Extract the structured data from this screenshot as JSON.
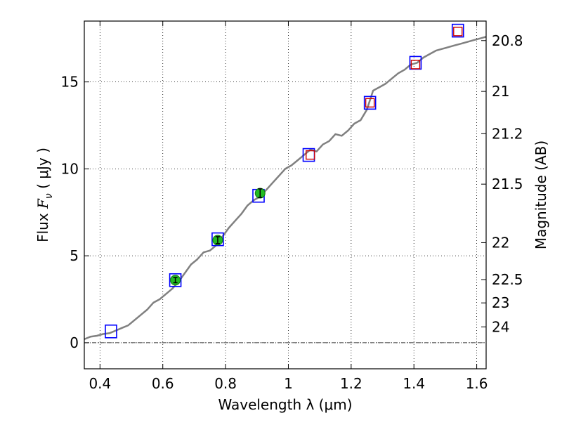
{
  "chart_data": {
    "type": "line",
    "xlabel": "Wavelength  λ (μm)",
    "ylabel": "Flux  F_ν  ( μJy )",
    "ylabel_parts": {
      "pre": "Flux  ",
      "symbol": "F",
      "sub": "ν",
      "post": "  (  μJy )"
    },
    "y2label": "Magnitude (AB)",
    "xlim": [
      0.35,
      1.63
    ],
    "ylim": [
      -1.5,
      18.5
    ],
    "grid": true,
    "x_ticks": [
      0.4,
      0.6,
      0.8,
      1.0,
      1.2,
      1.4,
      1.6
    ],
    "x_tick_labels": [
      "0.4",
      "0.6",
      "0.8",
      "1",
      "1.2",
      "1.4",
      "1.6"
    ],
    "y_ticks": [
      0,
      5,
      10,
      15
    ],
    "y_tick_labels": [
      "0",
      "5",
      "10",
      "15"
    ],
    "magnitude_ticks": [
      20.8,
      21,
      21.2,
      21.5,
      22,
      22.5,
      23,
      24
    ],
    "magnitude_tick_labels": [
      "20.8",
      "21",
      "21.2",
      "21.5",
      "22",
      "22.5",
      "23",
      "24"
    ],
    "magnitude_zero_point": 23.9,
    "zero_line": 0,
    "series": [
      {
        "kind": "spectrum",
        "color": "#808080",
        "x": [
          0.35,
          0.37,
          0.39,
          0.41,
          0.43,
          0.45,
          0.47,
          0.49,
          0.51,
          0.53,
          0.55,
          0.57,
          0.59,
          0.61,
          0.63,
          0.65,
          0.67,
          0.69,
          0.71,
          0.73,
          0.75,
          0.77,
          0.79,
          0.81,
          0.83,
          0.85,
          0.87,
          0.89,
          0.91,
          0.93,
          0.95,
          0.97,
          0.99,
          1.01,
          1.03,
          1.05,
          1.07,
          1.09,
          1.11,
          1.13,
          1.15,
          1.17,
          1.19,
          1.21,
          1.23,
          1.25,
          1.27,
          1.29,
          1.31,
          1.33,
          1.35,
          1.37,
          1.39,
          1.41,
          1.43,
          1.45,
          1.47,
          1.49,
          1.51,
          1.53,
          1.55,
          1.57,
          1.59,
          1.61,
          1.63
        ],
        "y": [
          0.2,
          0.35,
          0.4,
          0.5,
          0.55,
          0.7,
          0.85,
          1.0,
          1.3,
          1.6,
          1.9,
          2.3,
          2.5,
          2.8,
          3.1,
          3.5,
          4.0,
          4.5,
          4.8,
          5.2,
          5.3,
          5.6,
          6.1,
          6.6,
          7.0,
          7.4,
          7.9,
          8.2,
          8.4,
          8.8,
          9.2,
          9.6,
          10.0,
          10.2,
          10.5,
          10.8,
          11.1,
          11.0,
          11.4,
          11.6,
          12.0,
          11.9,
          12.2,
          12.6,
          12.8,
          13.4,
          14.5,
          14.7,
          14.9,
          15.2,
          15.5,
          15.7,
          16.0,
          16.1,
          16.4,
          16.6,
          16.8,
          16.9,
          17.0,
          17.1,
          17.2,
          17.3,
          17.4,
          17.5,
          17.6
        ]
      },
      {
        "kind": "model_photometry",
        "marker": "open square",
        "color": "#0000ff",
        "x": [
          0.435,
          0.64,
          0.775,
          0.905,
          1.065,
          1.26,
          1.405,
          1.54
        ],
        "y": [
          0.65,
          3.6,
          5.95,
          8.45,
          10.8,
          13.8,
          16.1,
          17.95
        ]
      },
      {
        "kind": "observed_photometry",
        "marker": "filled circle",
        "color": "#22bb22",
        "x": [
          0.64,
          0.775,
          0.91
        ],
        "y": [
          3.6,
          5.9,
          8.6
        ],
        "yerr": [
          0.15,
          0.2,
          0.25
        ]
      },
      {
        "kind": "extrapolated_photometry",
        "marker": "open square",
        "color": "#cc0000",
        "x": [
          1.07,
          1.26,
          1.405,
          1.54
        ],
        "y": [
          10.8,
          13.8,
          16.0,
          17.9
        ]
      }
    ]
  }
}
